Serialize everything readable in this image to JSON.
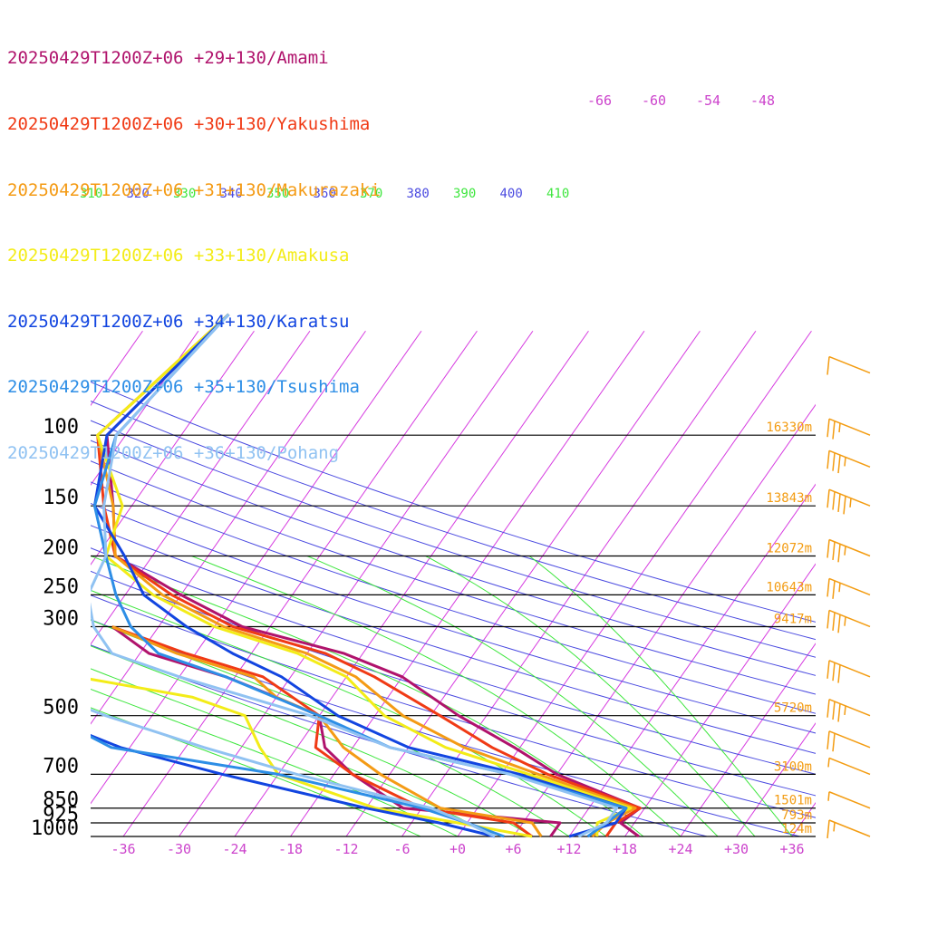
{
  "chart_data": {
    "type": "line",
    "subtype": "skew-t",
    "title": "",
    "xlabel": "",
    "ylabel": "",
    "legend_position": "top-left",
    "x_ticks": [
      "-36",
      "-30",
      "-24",
      "-18",
      "-12",
      "-6",
      "+0",
      "+6",
      "+12",
      "+18",
      "+24",
      "+30",
      "+36"
    ],
    "xlim": [
      -40,
      40
    ],
    "pressure_levels": [
      {
        "p": 100,
        "label": "100",
        "height": "16330m"
      },
      {
        "p": 150,
        "label": "150",
        "height": "13843m"
      },
      {
        "p": 200,
        "label": "200",
        "height": "12072m"
      },
      {
        "p": 250,
        "label": "250",
        "height": "10643m"
      },
      {
        "p": 300,
        "label": "300",
        "height": "9417m"
      },
      {
        "p": 500,
        "label": "500",
        "height": "5720m"
      },
      {
        "p": 700,
        "label": "700",
        "height": "3100m"
      },
      {
        "p": 850,
        "label": "850",
        "height": "1501m"
      },
      {
        "p": 925,
        "label": "925",
        "height": "793m"
      },
      {
        "p": 1000,
        "label": "1000",
        "height": "124m"
      }
    ],
    "upper_isotherm_labels": [
      "-66",
      "-60",
      "-54",
      "-48"
    ],
    "theta_labels": [
      "310",
      "320",
      "330",
      "340",
      "350",
      "360",
      "370",
      "380",
      "390",
      "400",
      "410"
    ],
    "colors": {
      "grid_isobar": "#000000",
      "isotherm": "#d63be0",
      "dry_adiabat": "#4a4ae0",
      "moist_adiabat": "#3ee63e",
      "tick_label": "#cc44cc",
      "height_label": "#f39c12",
      "wind_barb": "#f39c12"
    },
    "series": [
      {
        "name": "20250429T1200Z+06 +29+130/Amami",
        "color": "#b0136c",
        "temp": [
          [
            50,
            -64
          ],
          [
            100,
            -68
          ],
          [
            150,
            -62
          ],
          [
            200,
            -58
          ],
          [
            250,
            -48
          ],
          [
            300,
            -39
          ],
          [
            350,
            -26
          ],
          [
            400,
            -18
          ],
          [
            500,
            -9
          ],
          [
            600,
            -0.6
          ],
          [
            700,
            6
          ],
          [
            850,
            17.5
          ],
          [
            925,
            16.5
          ],
          [
            1000,
            19.5
          ]
        ],
        "dewp": [
          [
            300,
            -53
          ],
          [
            350,
            -47
          ],
          [
            400,
            -37
          ],
          [
            450,
            -30
          ],
          [
            500,
            -24
          ],
          [
            600,
            -21
          ],
          [
            700,
            -16
          ],
          [
            850,
            -8
          ],
          [
            925,
            10
          ],
          [
            1000,
            10
          ]
        ]
      },
      {
        "name": "20250429T1200Z+06 +30+130/Yakushima",
        "color": "#f03a15",
        "temp": [
          [
            50,
            -64
          ],
          [
            100,
            -69
          ],
          [
            150,
            -63
          ],
          [
            200,
            -58
          ],
          [
            250,
            -49
          ],
          [
            300,
            -40
          ],
          [
            350,
            -28
          ],
          [
            400,
            -21
          ],
          [
            500,
            -11
          ],
          [
            600,
            -3
          ],
          [
            700,
            5
          ],
          [
            850,
            17.5
          ],
          [
            925,
            16
          ],
          [
            1000,
            16
          ]
        ],
        "dewp": [
          [
            300,
            -53
          ],
          [
            350,
            -43
          ],
          [
            400,
            -33
          ],
          [
            500,
            -24
          ],
          [
            600,
            -22
          ],
          [
            700,
            -16
          ],
          [
            850,
            -6
          ],
          [
            925,
            5
          ],
          [
            1000,
            8
          ]
        ]
      },
      {
        "name": "20250429T1200Z+06 +31+130/Makurazaki",
        "color": "#f49b15",
        "temp": [
          [
            50,
            -64
          ],
          [
            100,
            -69
          ],
          [
            150,
            -62
          ],
          [
            200,
            -58
          ],
          [
            250,
            -50
          ],
          [
            300,
            -41
          ],
          [
            350,
            -30
          ],
          [
            400,
            -23
          ],
          [
            500,
            -15
          ],
          [
            600,
            -6
          ],
          [
            700,
            4
          ],
          [
            850,
            17
          ],
          [
            925,
            15
          ],
          [
            1000,
            14.5
          ]
        ],
        "dewp": [
          [
            300,
            -53
          ],
          [
            350,
            -44
          ],
          [
            400,
            -34
          ],
          [
            450,
            -30
          ],
          [
            500,
            -24
          ],
          [
            600,
            -19
          ],
          [
            700,
            -13
          ],
          [
            850,
            -4
          ],
          [
            925,
            7
          ],
          [
            1000,
            9
          ]
        ]
      },
      {
        "name": "20250429T1200Z+06 +33+130/Amakusa",
        "color": "#f3ec18",
        "temp": [
          [
            50,
            -64
          ],
          [
            100,
            -69
          ],
          [
            150,
            -61
          ],
          [
            200,
            -59
          ],
          [
            250,
            -51
          ],
          [
            300,
            -42
          ],
          [
            350,
            -31
          ],
          [
            400,
            -24
          ],
          [
            500,
            -17
          ],
          [
            600,
            -8
          ],
          [
            700,
            3
          ],
          [
            850,
            16.5
          ],
          [
            925,
            14
          ],
          [
            1000,
            15
          ]
        ],
        "dewp": [
          [
            300,
            -68
          ],
          [
            350,
            -61
          ],
          [
            400,
            -53
          ],
          [
            450,
            -39
          ],
          [
            500,
            -32
          ],
          [
            600,
            -28
          ],
          [
            700,
            -24
          ],
          [
            850,
            -11
          ],
          [
            925,
            -1
          ],
          [
            1000,
            8
          ]
        ]
      },
      {
        "name": "20250429T1200Z+06 +34+130/Karatsu",
        "color": "#1245e0",
        "temp": [
          [
            50,
            -64
          ],
          [
            100,
            -68
          ],
          [
            150,
            -64
          ],
          [
            200,
            -57
          ],
          [
            250,
            -52
          ],
          [
            300,
            -45
          ],
          [
            350,
            -38
          ],
          [
            400,
            -31
          ],
          [
            500,
            -22
          ],
          [
            600,
            -12
          ],
          [
            700,
            2
          ],
          [
            850,
            16
          ],
          [
            925,
            16
          ],
          [
            1000,
            12
          ]
        ],
        "dewp": [
          [
            300,
            -73
          ],
          [
            350,
            -71
          ],
          [
            400,
            -64
          ],
          [
            500,
            -54
          ],
          [
            600,
            -43
          ],
          [
            700,
            -30
          ],
          [
            850,
            -12
          ],
          [
            925,
            -3
          ],
          [
            1000,
            4
          ]
        ]
      },
      {
        "name": "20250429T1200Z+06 +35+130/Tsushima",
        "color": "#2d8ee6",
        "temp": [
          [
            50,
            -64
          ],
          [
            100,
            -67
          ],
          [
            150,
            -64
          ],
          [
            200,
            -59
          ],
          [
            250,
            -55
          ],
          [
            300,
            -51
          ],
          [
            350,
            -46
          ],
          [
            400,
            -37
          ],
          [
            500,
            -24
          ],
          [
            600,
            -14
          ],
          [
            700,
            1
          ],
          [
            850,
            16
          ],
          [
            925,
            15
          ],
          [
            1000,
            14
          ]
        ],
        "dewp": [
          [
            300,
            -75
          ],
          [
            350,
            -69
          ],
          [
            400,
            -64
          ],
          [
            500,
            -53
          ],
          [
            600,
            -44
          ],
          [
            700,
            -24
          ],
          [
            850,
            -6
          ],
          [
            925,
            0
          ],
          [
            1000,
            5
          ]
        ]
      },
      {
        "name": "20250429T1200Z+06 +36+130/Pohang",
        "color": "#90c2f2",
        "temp": [
          [
            50,
            -64
          ],
          [
            100,
            -67
          ],
          [
            150,
            -63
          ],
          [
            200,
            -59
          ],
          [
            250,
            -58
          ],
          [
            300,
            -55
          ],
          [
            350,
            -51
          ],
          [
            400,
            -42
          ],
          [
            500,
            -25
          ],
          [
            600,
            -14
          ],
          [
            700,
            1
          ],
          [
            850,
            15
          ],
          [
            925,
            15
          ],
          [
            1000,
            13
          ]
        ],
        "dewp": [
          [
            300,
            -72
          ],
          [
            350,
            -66
          ],
          [
            400,
            -61
          ],
          [
            500,
            -47
          ],
          [
            600,
            -34
          ],
          [
            700,
            -22
          ],
          [
            850,
            -5
          ],
          [
            925,
            0
          ],
          [
            1000,
            4
          ]
        ]
      }
    ],
    "wind_barbs": [
      {
        "p": 70,
        "speed_kt": 10
      },
      {
        "p": 120,
        "speed_kt": 35
      },
      {
        "p": 100,
        "speed_kt": 25
      },
      {
        "p": 150,
        "speed_kt": 45
      },
      {
        "p": 200,
        "speed_kt": 35
      },
      {
        "p": 250,
        "speed_kt": 25
      },
      {
        "p": 300,
        "speed_kt": 35
      },
      {
        "p": 400,
        "speed_kt": 30
      },
      {
        "p": 500,
        "speed_kt": 35
      },
      {
        "p": 600,
        "speed_kt": 20
      },
      {
        "p": 700,
        "speed_kt": 5
      },
      {
        "p": 850,
        "speed_kt": 5
      },
      {
        "p": 1000,
        "speed_kt": 15
      }
    ]
  }
}
